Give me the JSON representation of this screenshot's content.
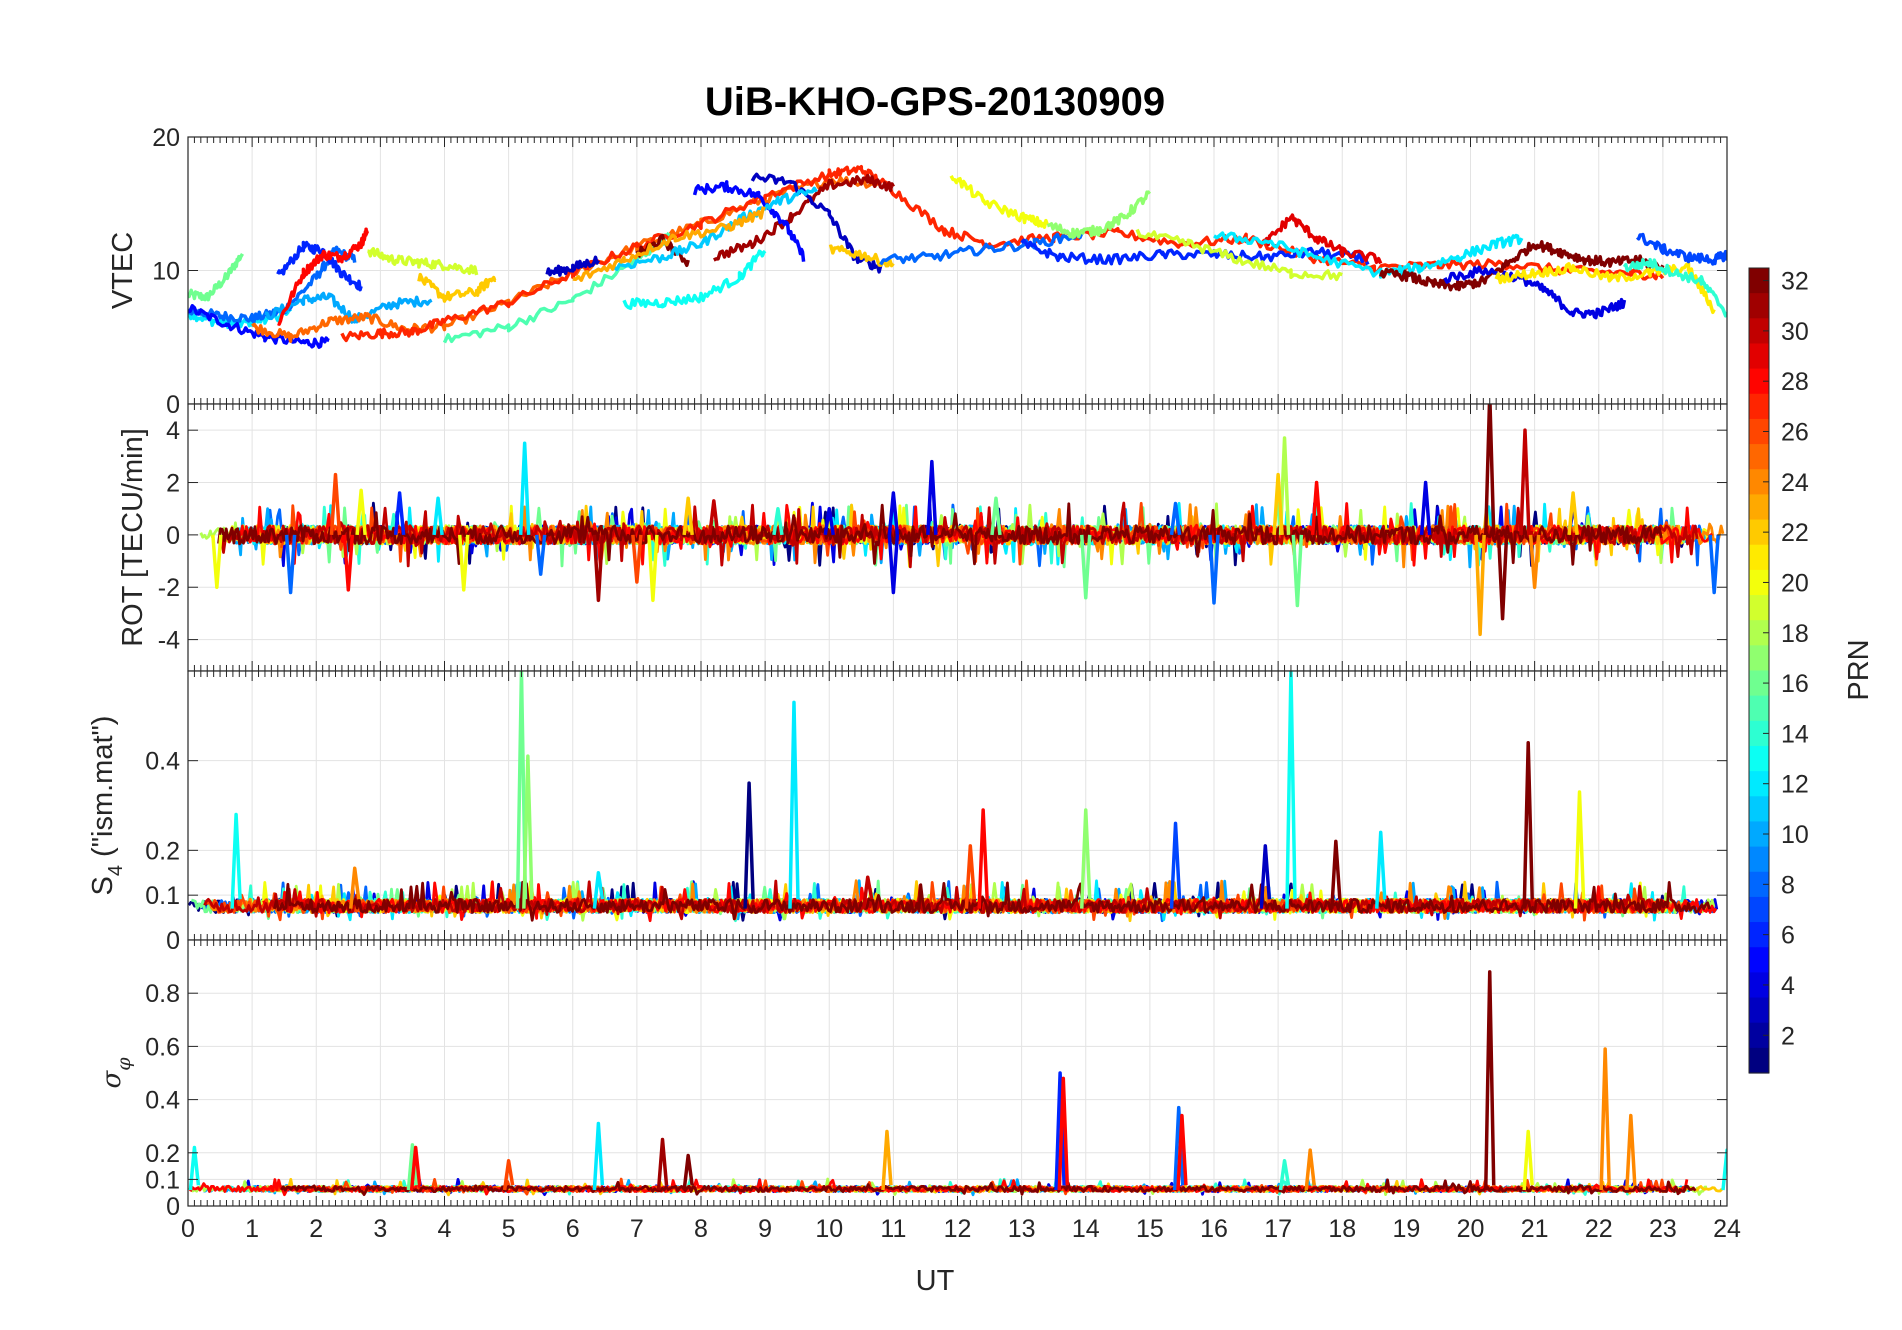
{
  "figure": {
    "title": "UiB-KHO-GPS-20130909",
    "xlabel": "UT",
    "x_ticks": [
      "0",
      "1",
      "2",
      "3",
      "4",
      "5",
      "6",
      "7",
      "8",
      "9",
      "10",
      "11",
      "12",
      "13",
      "14",
      "15",
      "16",
      "17",
      "18",
      "19",
      "20",
      "21",
      "22",
      "23",
      "24"
    ]
  },
  "colorbar": {
    "label": "PRN",
    "range": [
      1,
      32
    ],
    "ticks": [
      "2",
      "4",
      "6",
      "8",
      "10",
      "12",
      "14",
      "16",
      "18",
      "20",
      "22",
      "24",
      "26",
      "28",
      "30",
      "32"
    ],
    "colormap": "jet"
  },
  "chart_data": [
    {
      "id": "vtec",
      "type": "line",
      "ylabel": "VTEC",
      "xlim": [
        0,
        24
      ],
      "ylim": [
        0,
        20
      ],
      "y_ticks": [
        "0",
        "10",
        "20"
      ],
      "description_series": "one colored line per GPS PRN (colored by PRN)",
      "series": [
        {
          "prn": 16,
          "x": [
            0,
            0.3,
            0.6,
            0.85
          ],
          "y": [
            8.2,
            8.0,
            9.5,
            11.3
          ]
        },
        {
          "prn": 12,
          "x": [
            0,
            0.4,
            0.8,
            1.2,
            1.6
          ],
          "y": [
            6.8,
            6.2,
            6.0,
            6.4,
            6.8
          ]
        },
        {
          "prn": 8,
          "x": [
            0,
            0.5,
            1.0,
            1.5,
            2.0,
            2.3,
            2.6
          ],
          "y": [
            7.0,
            6.6,
            6.4,
            7.0,
            9.5,
            11.5,
            10.8
          ]
        },
        {
          "prn": 5,
          "x": [
            0,
            0.6,
            1.2,
            1.8,
            2.2
          ],
          "y": [
            7.2,
            6.0,
            5.0,
            4.6,
            4.6
          ]
        },
        {
          "prn": 6,
          "x": [
            1.4,
            1.8,
            2.1,
            2.4,
            2.7
          ],
          "y": [
            9.5,
            11.8,
            11.5,
            9.8,
            8.8
          ]
        },
        {
          "prn": 10,
          "x": [
            1.2,
            1.8,
            2.2,
            2.6,
            3.2,
            3.8
          ],
          "y": [
            6.5,
            7.8,
            8.0,
            6.3,
            7.5,
            7.8
          ]
        },
        {
          "prn": 25,
          "x": [
            1.0,
            1.6,
            2.2,
            2.8,
            3.4,
            4.0,
            5.0,
            6.0,
            7.0,
            8.0,
            9.0,
            10.0,
            10.8
          ],
          "y": [
            5.8,
            5.0,
            6.2,
            6.5,
            5.6,
            5.8,
            7.6,
            9.8,
            11.8,
            13.5,
            15.4,
            16.8,
            16.5
          ]
        },
        {
          "prn": 28,
          "x": [
            1.4,
            1.8,
            2.1,
            2.4,
            2.7,
            2.8
          ],
          "y": [
            6.0,
            9.8,
            11.2,
            11.0,
            12.0,
            13.0
          ]
        },
        {
          "prn": 19,
          "x": [
            2.8,
            3.2,
            3.6,
            4.0,
            4.5
          ],
          "y": [
            11.5,
            10.8,
            10.6,
            10.4,
            10.0
          ]
        },
        {
          "prn": 22,
          "x": [
            3.6,
            4.0,
            4.5,
            4.8
          ],
          "y": [
            9.5,
            8.0,
            8.4,
            9.6
          ]
        },
        {
          "prn": 15,
          "x": [
            4.0,
            5.0,
            6.0,
            7.0,
            7.5
          ],
          "y": [
            4.8,
            5.8,
            7.8,
            10.8,
            12.6
          ]
        },
        {
          "prn": 27,
          "x": [
            2.4,
            3.0,
            3.5,
            4.0,
            5.0,
            6.0,
            7.0,
            8.0,
            9.0,
            10.0,
            10.5,
            11.0,
            11.8,
            12.5,
            13.5,
            14.5,
            15.5,
            16.5,
            17.5,
            18.5,
            19.5,
            20.5,
            21.5,
            22.5,
            23.0
          ],
          "y": [
            5.0,
            5.3,
            5.4,
            6.2,
            7.6,
            9.8,
            11.8,
            13.5,
            15.6,
            17.2,
            17.6,
            16.0,
            13.0,
            12.0,
            12.5,
            12.8,
            12.0,
            12.4,
            11.0,
            10.2,
            10.4,
            10.5,
            10.0,
            9.8,
            9.6
          ]
        },
        {
          "prn": 3,
          "x": [
            5.6,
            6.0,
            6.4
          ],
          "y": [
            9.8,
            10.2,
            10.8
          ]
        },
        {
          "prn": 13,
          "x": [
            6.8,
            7.4,
            8.0,
            8.6,
            9.0
          ],
          "y": [
            7.5,
            7.6,
            8.0,
            9.5,
            11.6
          ]
        },
        {
          "prn": 32,
          "x": [
            7.0,
            7.4,
            7.8
          ],
          "y": [
            11.2,
            12.3,
            10.6
          ]
        },
        {
          "prn": 31,
          "x": [
            8.2,
            8.8,
            9.4,
            10.0,
            10.6,
            11.0
          ],
          "y": [
            11.0,
            12.0,
            14.0,
            16.4,
            16.8,
            16.2
          ]
        },
        {
          "prn": 5,
          "x": [
            7.9,
            8.4,
            8.9,
            9.3,
            9.6
          ],
          "y": [
            16.0,
            16.3,
            15.6,
            13.6,
            11.0
          ]
        },
        {
          "prn": 3,
          "x": [
            8.8,
            9.4,
            10.0,
            10.4,
            10.8
          ],
          "y": [
            17.0,
            16.6,
            14.2,
            11.0,
            10.2
          ]
        },
        {
          "prn": 11,
          "x": [
            6.6,
            7.4,
            8.0,
            8.6,
            9.2,
            9.8
          ],
          "y": [
            10.2,
            11.0,
            12.0,
            13.8,
            15.2,
            16.0
          ]
        },
        {
          "prn": 23,
          "x": [
            6.0,
            6.8,
            7.6,
            8.4,
            9.0
          ],
          "y": [
            9.2,
            10.8,
            12.5,
            13.2,
            14.4
          ]
        },
        {
          "prn": 22,
          "x": [
            10.0,
            10.5,
            11.0
          ],
          "y": [
            11.6,
            11.2,
            10.4
          ]
        },
        {
          "prn": 8,
          "x": [
            10.8,
            11.6,
            12.4,
            13.2,
            14.0
          ],
          "y": [
            10.8,
            11.0,
            11.6,
            12.0,
            12.8
          ]
        },
        {
          "prn": 20,
          "x": [
            11.9,
            12.4,
            13.0,
            13.4
          ],
          "y": [
            17.2,
            15.2,
            14.0,
            13.4
          ]
        },
        {
          "prn": 17,
          "x": [
            13.4,
            13.8,
            14.2,
            14.6,
            15.0
          ],
          "y": [
            13.4,
            12.8,
            13.0,
            14.0,
            15.8
          ]
        },
        {
          "prn": 6,
          "x": [
            13.0,
            13.6,
            14.4,
            15.2,
            16.0,
            16.8,
            17.6,
            18.4
          ],
          "y": [
            12.0,
            11.0,
            10.8,
            11.2,
            11.2,
            11.0,
            11.4,
            10.8
          ]
        },
        {
          "prn": 19,
          "x": [
            14.8,
            15.6,
            16.4,
            17.2,
            18.0
          ],
          "y": [
            12.8,
            12.0,
            10.8,
            9.8,
            9.6
          ]
        },
        {
          "prn": 29,
          "x": [
            16.8,
            17.2,
            17.6,
            18.0,
            18.6
          ],
          "y": [
            12.0,
            14.0,
            12.4,
            11.4,
            10.8
          ]
        },
        {
          "prn": 12,
          "x": [
            16.0,
            16.8,
            17.6,
            18.6,
            19.2,
            19.8,
            20.4,
            20.8
          ],
          "y": [
            12.6,
            12.2,
            11.0,
            9.8,
            10.2,
            11.0,
            12.0,
            12.4
          ]
        },
        {
          "prn": 32,
          "x": [
            18.6,
            19.0,
            19.4,
            19.8,
            20.2,
            20.6,
            21.0,
            21.4,
            21.8,
            22.2,
            22.6,
            23.0
          ],
          "y": [
            9.8,
            9.6,
            9.0,
            8.8,
            9.2,
            10.6,
            12.0,
            11.4,
            10.8,
            10.6,
            10.8,
            10.2
          ]
        },
        {
          "prn": 4,
          "x": [
            19.6,
            20.2,
            20.8,
            21.2,
            21.6,
            22.0,
            22.4
          ],
          "y": [
            9.4,
            10.0,
            9.4,
            8.4,
            6.8,
            6.8,
            7.6
          ]
        },
        {
          "prn": 21,
          "x": [
            20.4,
            21.0,
            21.6,
            22.2,
            22.8,
            23.4,
            23.8
          ],
          "y": [
            9.4,
            9.8,
            10.2,
            9.4,
            9.8,
            10.2,
            7.0
          ]
        },
        {
          "prn": 14,
          "x": [
            22.4,
            22.8,
            23.2,
            23.6,
            24.0
          ],
          "y": [
            10.2,
            10.6,
            9.8,
            9.2,
            6.8
          ]
        },
        {
          "prn": 7,
          "x": [
            22.6,
            23.0,
            23.4,
            23.8,
            24.0
          ],
          "y": [
            12.6,
            11.6,
            11.0,
            10.8,
            11.2
          ]
        }
      ]
    },
    {
      "id": "rot",
      "type": "line",
      "ylabel": "ROT [TECU/min]",
      "xlim": [
        0,
        24
      ],
      "ylim": [
        -5.2,
        5
      ],
      "y_ticks": [
        "-4",
        "-2",
        "0",
        "2",
        "4"
      ],
      "y_tick_values": [
        -4,
        -2,
        0,
        2,
        4
      ],
      "noise_series_prn": [
        1,
        4,
        8,
        10,
        12,
        14,
        16,
        18,
        20,
        22,
        24,
        26,
        28,
        30,
        32
      ],
      "noise_amplitude": 0.35,
      "spikes": [
        {
          "x": 0.45,
          "y": -2.0,
          "prn": 20
        },
        {
          "x": 1.6,
          "y": -2.2,
          "prn": 8
        },
        {
          "x": 2.3,
          "y": 2.3,
          "prn": 26
        },
        {
          "x": 2.5,
          "y": -2.1,
          "prn": 28
        },
        {
          "x": 2.7,
          "y": 1.7,
          "prn": 20
        },
        {
          "x": 3.3,
          "y": 1.6,
          "prn": 6
        },
        {
          "x": 3.9,
          "y": 1.4,
          "prn": 12
        },
        {
          "x": 4.3,
          "y": -2.1,
          "prn": 20
        },
        {
          "x": 5.25,
          "y": 3.5,
          "prn": 12
        },
        {
          "x": 5.5,
          "y": -1.5,
          "prn": 8
        },
        {
          "x": 6.4,
          "y": -2.5,
          "prn": 31
        },
        {
          "x": 7.0,
          "y": -1.8,
          "prn": 26
        },
        {
          "x": 7.25,
          "y": -2.5,
          "prn": 20
        },
        {
          "x": 7.8,
          "y": 1.4,
          "prn": 22
        },
        {
          "x": 8.2,
          "y": 1.3,
          "prn": 30
        },
        {
          "x": 9.2,
          "y": 1.0,
          "prn": 14
        },
        {
          "x": 10.0,
          "y": 1.0,
          "prn": 4
        },
        {
          "x": 11.0,
          "y": -2.2,
          "prn": 4
        },
        {
          "x": 11.6,
          "y": 2.8,
          "prn": 4
        },
        {
          "x": 11.0,
          "y": 1.6,
          "prn": 4
        },
        {
          "x": 12.6,
          "y": 1.4,
          "prn": 16
        },
        {
          "x": 14.0,
          "y": -2.4,
          "prn": 16
        },
        {
          "x": 15.4,
          "y": 1.2,
          "prn": 8
        },
        {
          "x": 16.0,
          "y": -2.6,
          "prn": 8
        },
        {
          "x": 17.1,
          "y": 3.7,
          "prn": 18
        },
        {
          "x": 17.3,
          "y": -2.7,
          "prn": 16
        },
        {
          "x": 17.0,
          "y": 2.3,
          "prn": 22
        },
        {
          "x": 17.6,
          "y": 2.0,
          "prn": 28
        },
        {
          "x": 19.3,
          "y": 2.0,
          "prn": 4
        },
        {
          "x": 20.15,
          "y": -3.8,
          "prn": 23
        },
        {
          "x": 20.3,
          "y": 5.4,
          "prn": 32
        },
        {
          "x": 20.5,
          "y": -3.2,
          "prn": 32
        },
        {
          "x": 20.85,
          "y": 4.0,
          "prn": 30
        },
        {
          "x": 21.0,
          "y": -2.0,
          "prn": 24
        },
        {
          "x": 21.6,
          "y": 1.6,
          "prn": 22
        },
        {
          "x": 23.8,
          "y": -2.2,
          "prn": 8
        }
      ]
    },
    {
      "id": "s4",
      "type": "line",
      "ylabel": "S4 (\"ism.mat\")",
      "ylabel_main": "S",
      "ylabel_sub": "4",
      "ylabel_rest": " (\"ism.mat\")",
      "xlim": [
        0,
        24
      ],
      "ylim": [
        0,
        0.6
      ],
      "y_ticks": [
        "0",
        "0.1",
        "0.2",
        "0.4"
      ],
      "y_tick_values": [
        0,
        0.1,
        0.2,
        0.4
      ],
      "noise_series_prn": [
        1,
        4,
        8,
        10,
        12,
        14,
        16,
        18,
        20,
        22,
        24,
        26,
        28,
        30,
        32
      ],
      "baseline": 0.07,
      "noise_amplitude": 0.03,
      "spikes": [
        {
          "x": 0.75,
          "y": 0.28,
          "prn": 13
        },
        {
          "x": 2.6,
          "y": 0.16,
          "prn": 24
        },
        {
          "x": 5.2,
          "y": 0.6,
          "prn": 16
        },
        {
          "x": 5.3,
          "y": 0.41,
          "prn": 17
        },
        {
          "x": 6.4,
          "y": 0.15,
          "prn": 12
        },
        {
          "x": 8.75,
          "y": 0.35,
          "prn": 1
        },
        {
          "x": 9.45,
          "y": 0.53,
          "prn": 12
        },
        {
          "x": 10.6,
          "y": 0.14,
          "prn": 30
        },
        {
          "x": 12.2,
          "y": 0.21,
          "prn": 26
        },
        {
          "x": 12.4,
          "y": 0.29,
          "prn": 28
        },
        {
          "x": 14.0,
          "y": 0.29,
          "prn": 17
        },
        {
          "x": 15.4,
          "y": 0.26,
          "prn": 7
        },
        {
          "x": 16.8,
          "y": 0.21,
          "prn": 3
        },
        {
          "x": 17.2,
          "y": 0.6,
          "prn": 13
        },
        {
          "x": 17.9,
          "y": 0.22,
          "prn": 32
        },
        {
          "x": 18.6,
          "y": 0.24,
          "prn": 12
        },
        {
          "x": 20.9,
          "y": 0.44,
          "prn": 32
        },
        {
          "x": 21.7,
          "y": 0.33,
          "prn": 20
        }
      ]
    },
    {
      "id": "sigma_phi",
      "type": "line",
      "ylabel": "σφ",
      "ylabel_main": "σ",
      "ylabel_sub": "φ",
      "xlim": [
        0,
        24
      ],
      "ylim": [
        0,
        1
      ],
      "y_ticks": [
        "0",
        "0.1",
        "0.2",
        "0.4",
        "0.6",
        "0.8"
      ],
      "y_tick_values": [
        0,
        0.1,
        0.2,
        0.4,
        0.6,
        0.8
      ],
      "noise_series_prn": [
        4,
        10,
        14,
        18,
        22,
        26,
        28,
        32
      ],
      "baseline": 0.06,
      "noise_amplitude": 0.02,
      "spikes": [
        {
          "x": 0.1,
          "y": 0.22,
          "prn": 13
        },
        {
          "x": 3.5,
          "y": 0.23,
          "prn": 16
        },
        {
          "x": 3.55,
          "y": 0.22,
          "prn": 28
        },
        {
          "x": 5.0,
          "y": 0.17,
          "prn": 26
        },
        {
          "x": 6.4,
          "y": 0.31,
          "prn": 12
        },
        {
          "x": 7.4,
          "y": 0.25,
          "prn": 31
        },
        {
          "x": 7.8,
          "y": 0.19,
          "prn": 32
        },
        {
          "x": 10.9,
          "y": 0.28,
          "prn": 23
        },
        {
          "x": 13.6,
          "y": 0.5,
          "prn": 6
        },
        {
          "x": 13.65,
          "y": 0.48,
          "prn": 28
        },
        {
          "x": 15.45,
          "y": 0.37,
          "prn": 8
        },
        {
          "x": 15.5,
          "y": 0.34,
          "prn": 28
        },
        {
          "x": 17.1,
          "y": 0.17,
          "prn": 14
        },
        {
          "x": 17.5,
          "y": 0.21,
          "prn": 24
        },
        {
          "x": 20.3,
          "y": 0.88,
          "prn": 32
        },
        {
          "x": 20.9,
          "y": 0.28,
          "prn": 20
        },
        {
          "x": 22.1,
          "y": 0.59,
          "prn": 24
        },
        {
          "x": 22.5,
          "y": 0.34,
          "prn": 24
        },
        {
          "x": 24.0,
          "y": 0.21,
          "prn": 13
        }
      ]
    }
  ]
}
